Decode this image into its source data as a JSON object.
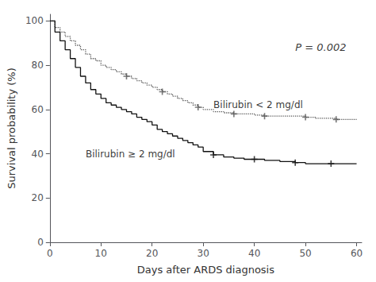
{
  "chart_data": {
    "type": "line",
    "xlabel": "Days after ARDS diagnosis",
    "ylabel": "Survival probability (%)",
    "xlim": [
      0,
      61
    ],
    "ylim": [
      0,
      103
    ],
    "xticks": [
      0,
      10,
      20,
      30,
      40,
      50,
      60
    ],
    "yticks": [
      0,
      20,
      40,
      60,
      80,
      100
    ],
    "grid": false,
    "series": [
      {
        "color": "#555555",
        "line_style": "dotted",
        "marker": "plus",
        "x": [
          0,
          1,
          2,
          3,
          4,
          5,
          6,
          7,
          8,
          9,
          10,
          11,
          12,
          13,
          14,
          15,
          16,
          17,
          18,
          19,
          20,
          21,
          22,
          23,
          24,
          25,
          26,
          27,
          28,
          29,
          30,
          32,
          34,
          36,
          38,
          40,
          42,
          44,
          46,
          48,
          50,
          52,
          54,
          56,
          58,
          60
        ],
        "values": [
          100,
          97,
          95,
          93,
          91,
          89,
          87,
          85,
          83,
          82,
          80,
          79,
          78,
          77,
          76,
          75,
          74,
          73,
          72,
          71,
          70,
          69,
          68,
          67,
          66,
          65,
          64,
          63,
          62,
          61,
          60,
          59,
          58.5,
          58,
          58,
          57.5,
          57,
          57,
          57,
          57,
          56.5,
          56,
          56,
          55.5,
          55.5,
          55.5
        ],
        "censors_x": [
          15,
          22,
          29,
          36,
          42,
          50,
          56
        ],
        "censors_y": [
          75,
          68,
          61,
          58,
          57,
          56.5,
          55.5
        ]
      },
      {
        "color": "#111111",
        "line_style": "solid",
        "marker": "plus",
        "x": [
          0,
          1,
          2,
          3,
          4,
          5,
          6,
          7,
          8,
          9,
          10,
          11,
          12,
          13,
          14,
          15,
          16,
          17,
          18,
          19,
          20,
          21,
          22,
          23,
          24,
          25,
          26,
          27,
          28,
          29,
          30,
          32,
          34,
          36,
          38,
          40,
          42,
          45,
          48,
          50,
          55,
          60
        ],
        "values": [
          100,
          95,
          91,
          87,
          83,
          79,
          75,
          72,
          69,
          67,
          65,
          63,
          62,
          61,
          60,
          59,
          58,
          56.5,
          55.5,
          54.5,
          53,
          51,
          50,
          49,
          48,
          47,
          46,
          45,
          44,
          43,
          41,
          39.5,
          38.5,
          38,
          37.5,
          37.5,
          37,
          36.5,
          36,
          35.5,
          35.5,
          35.5
        ],
        "censors_x": [
          32,
          40,
          48,
          55
        ],
        "censors_y": [
          39.5,
          37.5,
          36,
          35.5
        ]
      }
    ],
    "annotations": [
      {
        "text": "Bilirubin < 2 mg/dl",
        "x": 32,
        "y": 62
      },
      {
        "text": "Bilirubin ≥ 2 mg/dl",
        "x": 7,
        "y": 40
      }
    ],
    "pvalue": {
      "text": "P = 0.002",
      "x": 53,
      "y": 88
    }
  }
}
